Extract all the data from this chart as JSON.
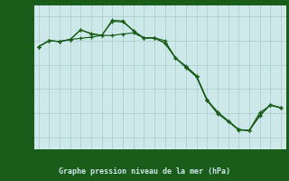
{
  "title": "Graphe pression niveau de la mer (hPa)",
  "plot_bg_color": "#cce8e8",
  "fig_bg_color": "#1a5c1a",
  "grid_color": "#aacccc",
  "line_color": "#1a5c1a",
  "xlabel_bg": "#1a5c1a",
  "xlabel_color": "#cce8e8",
  "tick_color": "#1a5c1a",
  "xlim": [
    -0.5,
    23.5
  ],
  "ylim": [
    1019.5,
    1025.5
  ],
  "yticks": [
    1020,
    1021,
    1022,
    1023,
    1024,
    1025
  ],
  "xticks": [
    0,
    1,
    2,
    3,
    4,
    5,
    6,
    7,
    8,
    9,
    10,
    11,
    12,
    13,
    14,
    15,
    16,
    17,
    18,
    19,
    20,
    21,
    22,
    23
  ],
  "hours": [
    0,
    1,
    2,
    3,
    4,
    5,
    6,
    7,
    8,
    9,
    10,
    11,
    12,
    13,
    14,
    15,
    16,
    17,
    18,
    19,
    20,
    21,
    22,
    23
  ],
  "line1": [
    1023.75,
    1024.0,
    1023.97,
    1024.05,
    1024.45,
    1024.3,
    1024.22,
    1024.85,
    1024.82,
    1024.42,
    1024.1,
    1024.12,
    1023.9,
    1023.28,
    1022.95,
    1022.55,
    1021.55,
    1021.05,
    1020.68,
    1020.32,
    1020.28,
    1021.02,
    1021.32,
    1021.22
  ],
  "line2": [
    1023.75,
    1024.0,
    1023.97,
    1024.05,
    1024.45,
    1024.28,
    1024.22,
    1024.8,
    1024.78,
    1024.42,
    1024.12,
    1024.12,
    1024.0,
    1023.28,
    1022.92,
    1022.52,
    1021.52,
    1021.02,
    1020.68,
    1020.32,
    1020.28,
    1020.92,
    1021.35,
    1021.22
  ],
  "line3": [
    1023.75,
    1024.0,
    1023.97,
    1024.05,
    1024.1,
    1024.15,
    1024.22,
    1024.22,
    1024.28,
    1024.32,
    1024.12,
    1024.12,
    1023.9,
    1023.3,
    1022.88,
    1022.5,
    1021.52,
    1020.98,
    1020.65,
    1020.3,
    1020.28,
    1020.88,
    1021.35,
    1021.22
  ]
}
